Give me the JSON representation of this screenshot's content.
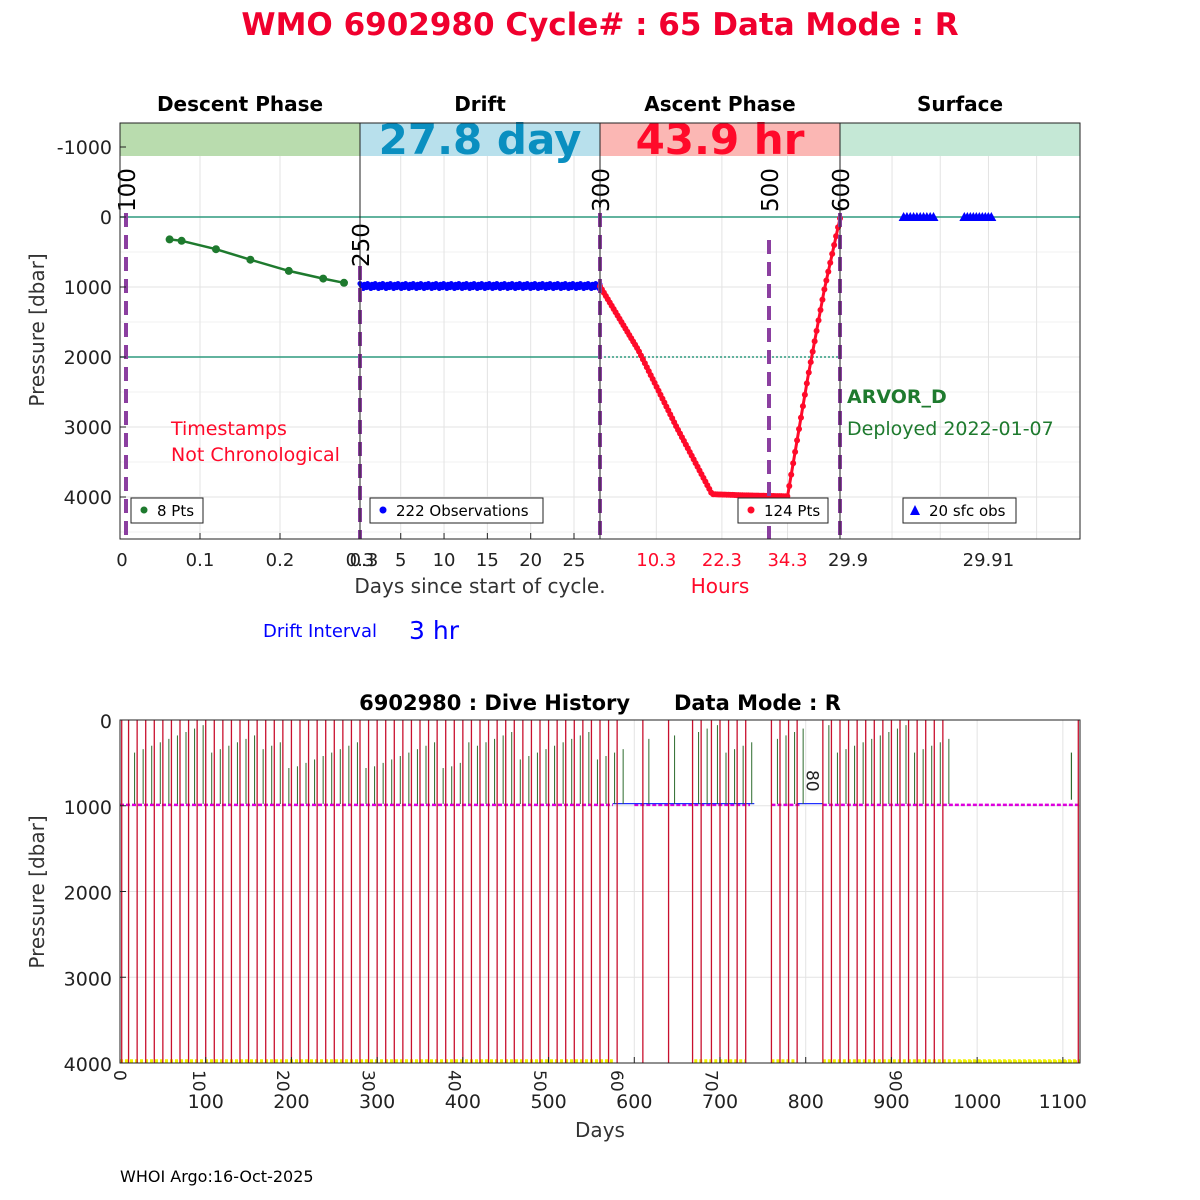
{
  "header": {
    "title": "WMO 6902980   Cycle# : 65   Data Mode : R"
  },
  "colors": {
    "title_red": "#f0002e",
    "descent_green": "#1e7a2e",
    "drift_blue": "#0000ff",
    "ascent_red": "#ff0a2a",
    "phase_line_purple": "#8b3fa0",
    "ref_line_teal": "#2e9a7e",
    "descent_band": "#b9dcae",
    "drift_band": "#b8e0ec",
    "ascent_band": "#fbb7b4",
    "surface_band": "#c5e8d6",
    "drift_band_text": "#0a8fc0",
    "dive_red": "#c8102e",
    "dive_green": "#2d6b2d",
    "dive_magenta": "#dd00dd",
    "dive_yellow": "#f2f200"
  },
  "chart_data": [
    {
      "type": "line",
      "name": "cycle-profile",
      "phases": [
        {
          "label": "Descent Phase",
          "band_text": ""
        },
        {
          "label": "Drift",
          "band_text": "27.8 day"
        },
        {
          "label": "Ascent Phase",
          "band_text": "43.9 hr"
        },
        {
          "label": "Surface",
          "band_text": ""
        }
      ],
      "ylabel": "Pressure [dbar]",
      "ylim": [
        4600,
        -1400
      ],
      "yticks": [
        "-1000",
        "0",
        "1000",
        "2000",
        "3000",
        "4000"
      ],
      "ytick_values": [
        -1000,
        0,
        1000,
        2000,
        3000,
        4000
      ],
      "xlabel": "Days since start of cycle.",
      "xlabel_hours": "Hours",
      "descent_xticks": [
        "0",
        "0.1",
        "0.2",
        "0.3"
      ],
      "drift_xticks": [
        "5",
        "10",
        "15",
        "20",
        "25"
      ],
      "ascent_xticks": [
        "10.3",
        "22.3",
        "34.3"
      ],
      "surface_xticks": [
        "29.9",
        "29.91"
      ],
      "phase_markers": [
        "100",
        "250",
        "300",
        "500",
        "600"
      ],
      "reference_lines": [
        0,
        2000
      ],
      "descent": {
        "xlim": [
          0,
          0.3
        ],
        "x": [
          0.062,
          0.077,
          0.12,
          0.163,
          0.211,
          0.254,
          0.28
        ],
        "y": [
          320,
          340,
          460,
          610,
          770,
          880,
          940
        ],
        "legend": "8 Pts"
      },
      "drift": {
        "xlim": [
          0.3,
          28
        ],
        "y_mean": 985,
        "legend": "222 Observations"
      },
      "ascent": {
        "xlim": [
          0,
          43.9
        ],
        "x": [
          0,
          7,
          14,
          20.5,
          25.9,
          31,
          34.3,
          38,
          41,
          43.9
        ],
        "y": [
          990,
          1900,
          3000,
          3960,
          3975,
          3985,
          3990,
          2300,
          1050,
          20
        ],
        "legend": "124 Pts"
      },
      "surface": {
        "xlim": [
          29.8946,
          29.9195
        ],
        "groups": [
          [
            29.9012,
            29.9043
          ],
          [
            29.9075,
            29.9103
          ]
        ],
        "legend": "20 sfc obs"
      },
      "annotations": {
        "timestamps_line1": "Timestamps",
        "timestamps_line2": "Not Chronological",
        "float_type": "ARVOR_D",
        "deployed": "Deployed 2022-01-07"
      },
      "drift_interval_label": "Drift Interval",
      "drift_interval_value": "3 hr"
    },
    {
      "type": "bar",
      "name": "dive-history",
      "title": "6902980 : Dive History      Data Mode : R",
      "xlabel": "Days",
      "ylabel": "Pressure [dbar]",
      "xlim": [
        0,
        1120
      ],
      "ylim": [
        4000,
        0
      ],
      "xticks": [
        "100",
        "200",
        "300",
        "400",
        "500",
        "600",
        "700",
        "800",
        "900",
        "1000",
        "1100"
      ],
      "xtick_values": [
        100,
        200,
        300,
        400,
        500,
        600,
        700,
        800,
        900,
        1000,
        1100
      ],
      "yticks": [
        "0",
        "1000",
        "2000",
        "3000",
        "4000"
      ],
      "ytick_values": [
        0,
        1000,
        2000,
        3000,
        4000
      ],
      "cycle_labels": [
        "0",
        "10",
        "20",
        "30",
        "40",
        "50",
        "60",
        "70",
        "80",
        "90"
      ],
      "cycle_label_days": [
        0,
        92,
        190,
        290,
        390,
        490,
        580,
        690,
        810,
        905
      ],
      "profile_days": [
        2,
        10,
        20,
        30,
        40,
        50,
        60,
        70,
        80,
        90,
        100,
        110,
        120,
        130,
        140,
        150,
        160,
        170,
        180,
        190,
        200,
        210,
        220,
        230,
        240,
        250,
        260,
        270,
        280,
        290,
        300,
        310,
        320,
        330,
        340,
        350,
        360,
        370,
        380,
        390,
        400,
        410,
        420,
        430,
        440,
        450,
        460,
        470,
        480,
        490,
        500,
        510,
        520,
        530,
        540,
        550,
        560,
        570,
        580,
        610,
        640,
        668,
        678,
        690,
        700,
        710,
        720,
        730,
        760,
        770,
        780,
        790,
        820,
        830,
        840,
        850,
        860,
        870,
        880,
        890,
        900,
        910,
        920,
        930,
        940,
        950,
        960,
        1118
      ],
      "parking_segments": [
        [
          0,
          575
        ],
        [
          600,
          735
        ],
        [
          760,
          795
        ],
        [
          820,
          1120
        ]
      ],
      "profile_segments": [
        [
          0,
          575
        ],
        [
          670,
          730
        ],
        [
          760,
          790
        ],
        [
          820,
          1120
        ]
      ]
    }
  ],
  "footer": {
    "credit": "WHOI Argo:16-Oct-2025"
  }
}
